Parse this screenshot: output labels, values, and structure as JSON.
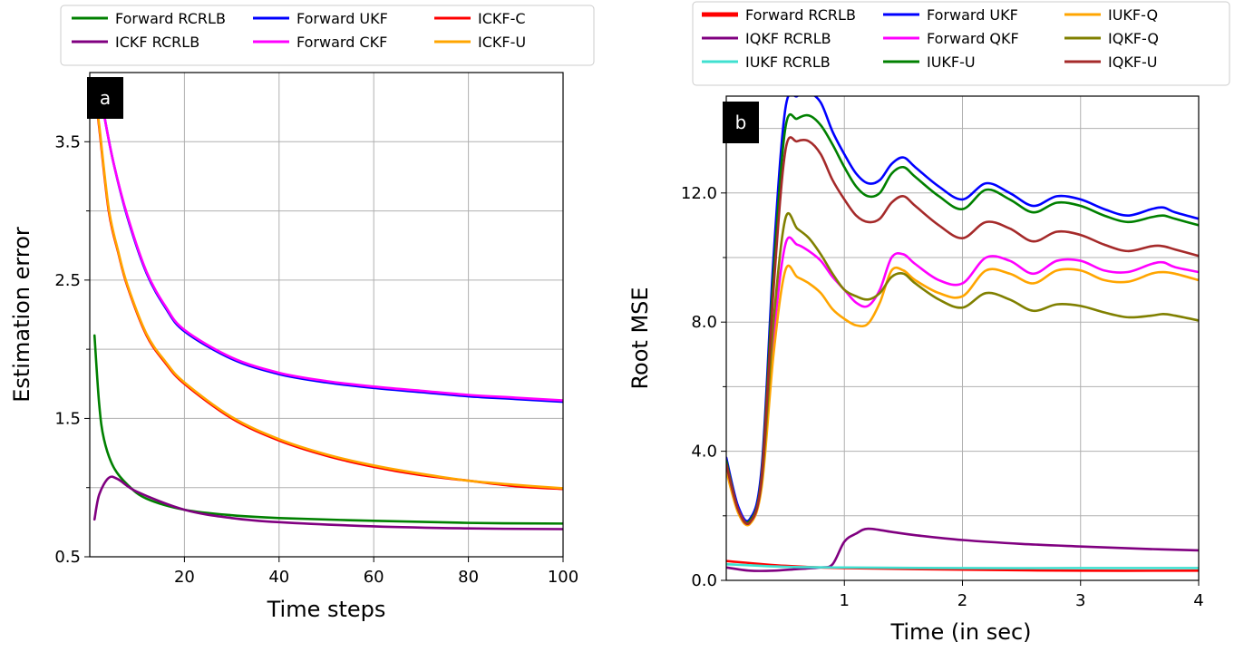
{
  "chart_data": [
    {
      "type": "line",
      "panel_tag": "a",
      "xlabel": "Time steps",
      "ylabel": "Estimation error",
      "xlim": [
        0,
        100
      ],
      "ylim": [
        0.5,
        4.0
      ],
      "xticks": [
        20,
        40,
        60,
        80,
        100
      ],
      "xtick_labels": [
        "20",
        "40",
        "60",
        "80",
        "100"
      ],
      "yticks": [
        0.5,
        1.5,
        2.5,
        3.5
      ],
      "ytick_labels": [
        "0.5",
        "1.5",
        "2.5",
        "3.5"
      ],
      "minor_yticks": [
        1.0,
        2.0,
        3.0
      ],
      "grid": true,
      "legend": {
        "placement": "above",
        "columns": 3
      },
      "series": [
        {
          "name": "Forward RCRLB",
          "color": "#008000",
          "x": [
            1,
            2,
            3,
            5,
            8,
            12,
            20,
            30,
            40,
            60,
            80,
            100
          ],
          "y": [
            2.1,
            1.6,
            1.35,
            1.15,
            1.02,
            0.92,
            0.84,
            0.8,
            0.78,
            0.76,
            0.745,
            0.74
          ]
        },
        {
          "name": "ICKF RCRLB",
          "color": "#800080",
          "x": [
            1,
            2,
            4,
            6,
            10,
            20,
            30,
            40,
            60,
            80,
            100
          ],
          "y": [
            0.77,
            0.95,
            1.07,
            1.06,
            0.97,
            0.84,
            0.78,
            0.75,
            0.72,
            0.705,
            0.7
          ]
        },
        {
          "name": "Forward UKF",
          "color": "#0000ff",
          "x": [
            2,
            3,
            5,
            8,
            12,
            16,
            20,
            30,
            40,
            50,
            60,
            70,
            80,
            90,
            100
          ],
          "y": [
            3.9,
            3.7,
            3.35,
            2.95,
            2.55,
            2.3,
            2.13,
            1.93,
            1.82,
            1.76,
            1.72,
            1.69,
            1.66,
            1.64,
            1.62
          ]
        },
        {
          "name": "Forward CKF",
          "color": "#ff00ff",
          "x": [
            2,
            3,
            5,
            8,
            12,
            16,
            20,
            30,
            40,
            50,
            60,
            70,
            80,
            90,
            100
          ],
          "y": [
            3.9,
            3.7,
            3.35,
            2.96,
            2.56,
            2.31,
            2.14,
            1.94,
            1.83,
            1.77,
            1.73,
            1.7,
            1.67,
            1.65,
            1.63
          ]
        },
        {
          "name": "ICKF-C",
          "color": "#ff0000",
          "x": [
            1,
            2,
            4,
            6,
            8,
            12,
            16,
            20,
            30,
            40,
            50,
            60,
            70,
            80,
            90,
            100
          ],
          "y": [
            3.9,
            3.6,
            3.0,
            2.7,
            2.45,
            2.1,
            1.9,
            1.75,
            1.5,
            1.34,
            1.23,
            1.15,
            1.09,
            1.05,
            1.01,
            0.99
          ]
        },
        {
          "name": "ICKF-U",
          "color": "#ffa500",
          "x": [
            1,
            2,
            4,
            6,
            8,
            12,
            16,
            20,
            30,
            40,
            50,
            60,
            70,
            80,
            90,
            100
          ],
          "y": [
            3.9,
            3.62,
            3.02,
            2.71,
            2.46,
            2.11,
            1.91,
            1.76,
            1.51,
            1.35,
            1.24,
            1.16,
            1.1,
            1.05,
            1.02,
            0.995
          ]
        }
      ]
    },
    {
      "type": "line",
      "panel_tag": "b",
      "xlabel": "Time (in sec)",
      "ylabel": "Root MSE",
      "xlim": [
        0,
        4
      ],
      "ylim": [
        0,
        15
      ],
      "xticks": [
        1,
        2,
        3,
        4
      ],
      "xtick_labels": [
        "1",
        "2",
        "3",
        "4"
      ],
      "yticks": [
        0,
        4,
        8,
        12
      ],
      "ytick_labels": [
        "0.0",
        "4.0",
        "8.0",
        "12.0"
      ],
      "minor_yticks": [
        2,
        6,
        10,
        14
      ],
      "grid": true,
      "legend": {
        "placement": "above",
        "columns": 3
      },
      "series": [
        {
          "name": "Forward RCRLB",
          "color": "#ff0000",
          "x": [
            0,
            0.5,
            1,
            2,
            3,
            4
          ],
          "y": [
            0.6,
            0.45,
            0.38,
            0.33,
            0.3,
            0.3
          ]
        },
        {
          "name": "IQKF RCRLB",
          "color": "#800080",
          "x": [
            0,
            0.2,
            0.4,
            0.6,
            0.8,
            0.9,
            1.0,
            1.1,
            1.2,
            1.4,
            1.6,
            2.0,
            2.5,
            3.0,
            3.5,
            4.0
          ],
          "y": [
            0.4,
            0.3,
            0.3,
            0.35,
            0.4,
            0.5,
            1.2,
            1.45,
            1.6,
            1.5,
            1.4,
            1.25,
            1.13,
            1.05,
            0.98,
            0.93
          ]
        },
        {
          "name": "IUKF RCRLB",
          "color": "#40e0d0",
          "x": [
            0,
            0.5,
            1,
            2,
            3,
            4
          ],
          "y": [
            0.5,
            0.42,
            0.4,
            0.38,
            0.38,
            0.38
          ]
        },
        {
          "name": "Forward UKF",
          "color": "#0000ff",
          "x": [
            0,
            0.1,
            0.2,
            0.3,
            0.4,
            0.5,
            0.6,
            0.7,
            0.8,
            0.9,
            1.0,
            1.1,
            1.2,
            1.3,
            1.4,
            1.5,
            1.6,
            1.8,
            2.0,
            2.2,
            2.4,
            2.6,
            2.8,
            3.0,
            3.2,
            3.4,
            3.6,
            3.7,
            3.8,
            4.0
          ],
          "y": [
            3.8,
            2.3,
            1.9,
            3.5,
            10.0,
            14.6,
            15.0,
            15.1,
            14.8,
            13.9,
            13.2,
            12.6,
            12.3,
            12.4,
            12.9,
            13.1,
            12.8,
            12.2,
            11.8,
            12.3,
            12.0,
            11.6,
            11.9,
            11.8,
            11.5,
            11.3,
            11.5,
            11.55,
            11.4,
            11.2
          ]
        },
        {
          "name": "Forward QKF",
          "color": "#ff00ff",
          "x": [
            0,
            0.1,
            0.2,
            0.3,
            0.4,
            0.5,
            0.6,
            0.7,
            0.8,
            0.9,
            1.0,
            1.1,
            1.2,
            1.3,
            1.4,
            1.5,
            1.6,
            1.8,
            2.0,
            2.2,
            2.4,
            2.6,
            2.8,
            3.0,
            3.2,
            3.4,
            3.6,
            3.7,
            3.8,
            4.0
          ],
          "y": [
            3.5,
            2.2,
            1.8,
            3.0,
            7.5,
            10.4,
            10.4,
            10.2,
            9.9,
            9.4,
            9.0,
            8.6,
            8.5,
            9.0,
            10.0,
            10.1,
            9.8,
            9.3,
            9.2,
            10.0,
            9.9,
            9.5,
            9.9,
            9.9,
            9.6,
            9.55,
            9.8,
            9.85,
            9.7,
            9.55
          ]
        },
        {
          "name": "IUKF-U",
          "color": "#008000",
          "x": [
            0,
            0.1,
            0.2,
            0.3,
            0.4,
            0.5,
            0.6,
            0.7,
            0.8,
            0.9,
            1.0,
            1.1,
            1.2,
            1.3,
            1.4,
            1.5,
            1.6,
            1.8,
            2.0,
            2.2,
            2.4,
            2.6,
            2.8,
            3.0,
            3.2,
            3.4,
            3.6,
            3.7,
            3.8,
            4.0
          ],
          "y": [
            3.7,
            2.2,
            1.85,
            3.3,
            9.5,
            14.0,
            14.3,
            14.4,
            14.1,
            13.5,
            12.8,
            12.2,
            11.9,
            12.0,
            12.6,
            12.8,
            12.5,
            11.9,
            11.5,
            12.1,
            11.8,
            11.4,
            11.7,
            11.6,
            11.3,
            11.1,
            11.25,
            11.3,
            11.2,
            11.0
          ]
        },
        {
          "name": "IUKF-Q",
          "color": "#ffa500",
          "x": [
            0,
            0.1,
            0.2,
            0.3,
            0.4,
            0.5,
            0.6,
            0.7,
            0.8,
            0.9,
            1.0,
            1.1,
            1.2,
            1.3,
            1.4,
            1.5,
            1.6,
            1.8,
            2.0,
            2.2,
            2.4,
            2.6,
            2.8,
            3.0,
            3.2,
            3.4,
            3.6,
            3.7,
            3.8,
            4.0
          ],
          "y": [
            3.4,
            2.1,
            1.75,
            2.9,
            7.0,
            9.6,
            9.4,
            9.2,
            8.9,
            8.4,
            8.1,
            7.9,
            7.95,
            8.6,
            9.6,
            9.6,
            9.3,
            8.9,
            8.8,
            9.6,
            9.5,
            9.2,
            9.6,
            9.6,
            9.3,
            9.25,
            9.5,
            9.55,
            9.5,
            9.3
          ]
        },
        {
          "name": "IQKF-Q",
          "color": "#808000",
          "x": [
            0,
            0.1,
            0.2,
            0.3,
            0.4,
            0.5,
            0.6,
            0.7,
            0.8,
            0.9,
            1.0,
            1.1,
            1.2,
            1.3,
            1.4,
            1.5,
            1.6,
            1.8,
            2.0,
            2.2,
            2.4,
            2.6,
            2.8,
            3.0,
            3.2,
            3.4,
            3.6,
            3.7,
            3.8,
            4.0
          ],
          "y": [
            3.6,
            2.2,
            1.8,
            3.1,
            8.0,
            11.2,
            10.9,
            10.6,
            10.1,
            9.5,
            9.0,
            8.8,
            8.7,
            8.9,
            9.4,
            9.5,
            9.2,
            8.7,
            8.45,
            8.9,
            8.7,
            8.35,
            8.55,
            8.5,
            8.3,
            8.15,
            8.2,
            8.25,
            8.2,
            8.05
          ]
        },
        {
          "name": "IQKF-U",
          "color": "#a52a2a",
          "x": [
            0,
            0.1,
            0.2,
            0.3,
            0.4,
            0.5,
            0.6,
            0.7,
            0.8,
            0.9,
            1.0,
            1.1,
            1.2,
            1.3,
            1.4,
            1.5,
            1.6,
            1.8,
            2.0,
            2.2,
            2.4,
            2.6,
            2.8,
            3.0,
            3.2,
            3.4,
            3.6,
            3.7,
            3.8,
            4.0
          ],
          "y": [
            3.6,
            2.2,
            1.8,
            3.2,
            9.0,
            13.3,
            13.6,
            13.6,
            13.2,
            12.4,
            11.8,
            11.3,
            11.1,
            11.2,
            11.7,
            11.9,
            11.6,
            11.0,
            10.6,
            11.1,
            10.9,
            10.5,
            10.8,
            10.7,
            10.4,
            10.2,
            10.35,
            10.35,
            10.25,
            10.05
          ]
        }
      ]
    }
  ]
}
